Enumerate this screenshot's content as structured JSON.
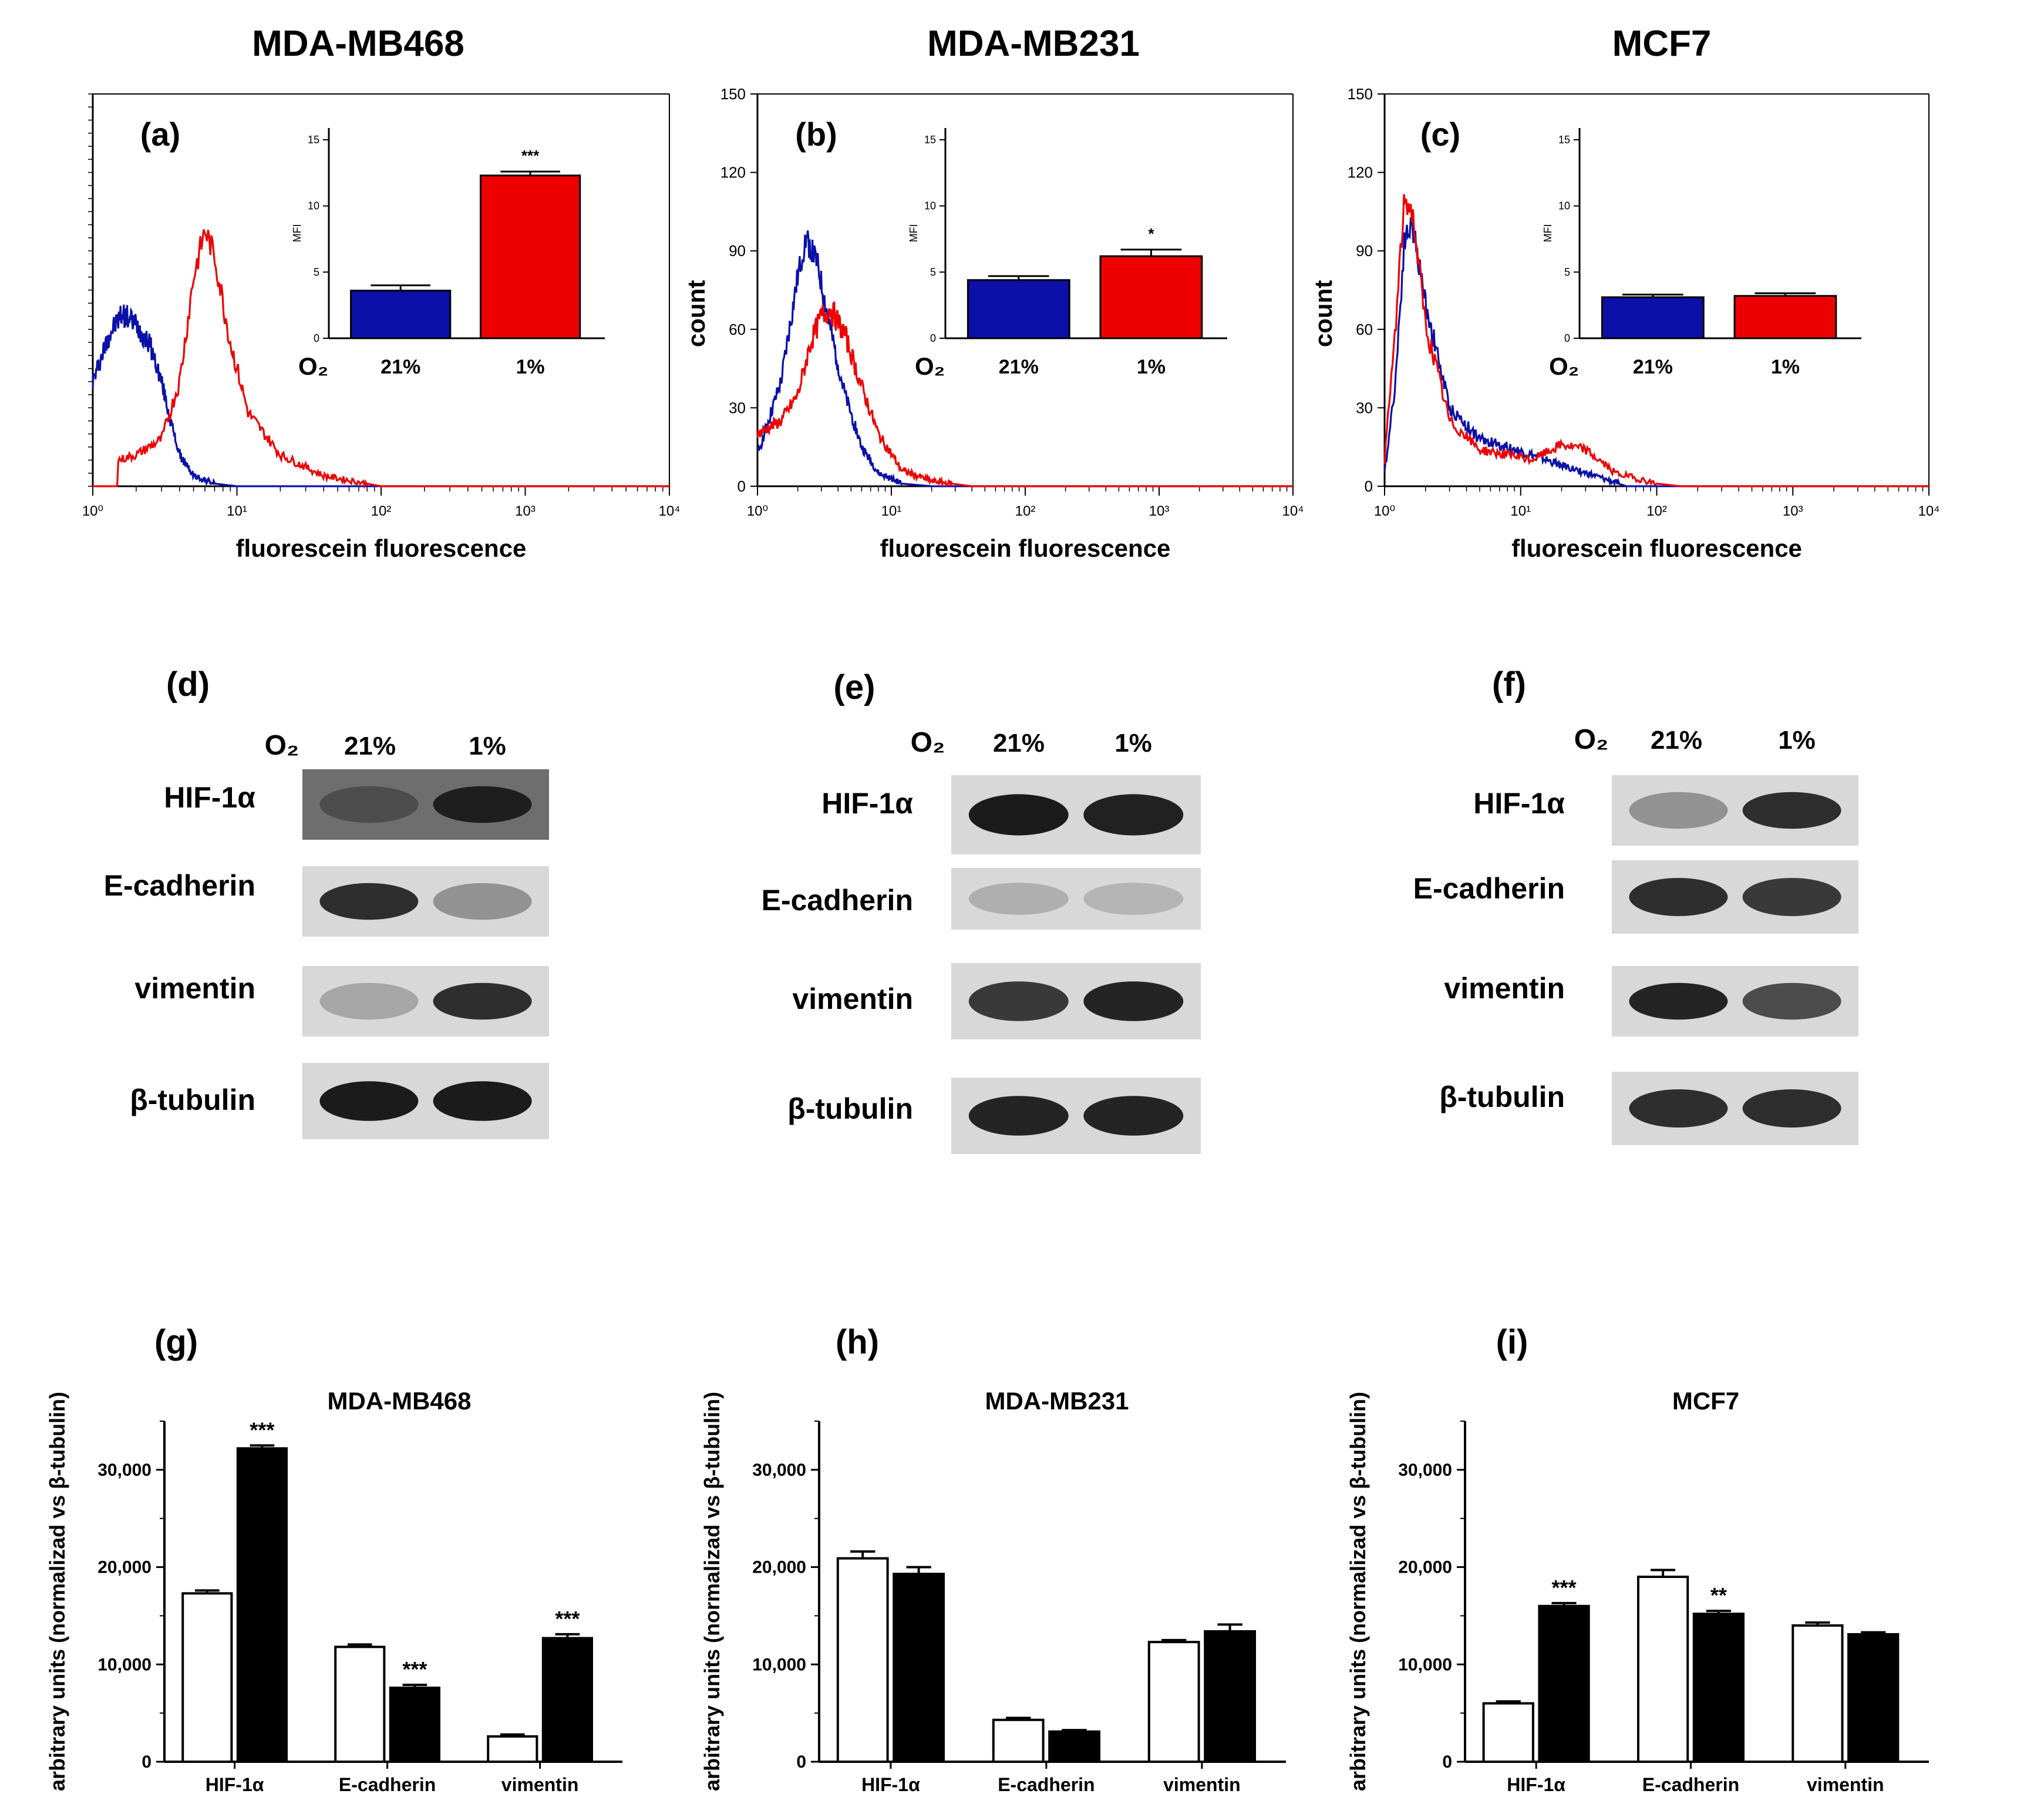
{
  "figure": {
    "flow_panels": [
      {
        "id": "a",
        "title": "MDA-MB468",
        "letter": "(a)",
        "ylabel": "",
        "xlabel": "fluorescein fluorescence",
        "yticks": [],
        "xticks": [
          "10⁰",
          "10¹",
          "10²",
          "10³",
          "10⁴"
        ],
        "inset": {
          "ylabel": "MFI",
          "yticks": [
            "0",
            "5",
            "10",
            "15"
          ],
          "o2": "O₂",
          "bars": [
            {
              "label": "21%",
              "value": 3.6,
              "err": 0.4,
              "color": "#0a10a8",
              "sig": ""
            },
            {
              "label": "1%",
              "value": 12.3,
              "err": 0.3,
              "color": "#ee0000",
              "sig": "***"
            }
          ]
        }
      },
      {
        "id": "b",
        "title": "MDA-MB231",
        "letter": "(b)",
        "ylabel": "count",
        "xlabel": "fluorescein fluorescence",
        "yticks": [
          "0",
          "30",
          "60",
          "90",
          "120",
          "150"
        ],
        "xticks": [
          "10⁰",
          "10¹",
          "10²",
          "10³",
          "10⁴"
        ],
        "inset": {
          "ylabel": "MFI",
          "yticks": [
            "0",
            "5",
            "10",
            "15"
          ],
          "o2": "O₂",
          "bars": [
            {
              "label": "21%",
              "value": 4.4,
              "err": 0.3,
              "color": "#0a10a8",
              "sig": ""
            },
            {
              "label": "1%",
              "value": 6.2,
              "err": 0.5,
              "color": "#ee0000",
              "sig": "*"
            }
          ]
        }
      },
      {
        "id": "c",
        "title": "MCF7",
        "letter": "(c)",
        "ylabel": "count",
        "xlabel": "fluorescein fluorescence",
        "yticks": [
          "0",
          "30",
          "60",
          "90",
          "120",
          "150"
        ],
        "xticks": [
          "10⁰",
          "10¹",
          "10²",
          "10³",
          "10⁴"
        ],
        "inset": {
          "ylabel": "MFI",
          "yticks": [
            "0",
            "5",
            "10",
            "15"
          ],
          "o2": "O₂",
          "bars": [
            {
              "label": "21%",
              "value": 3.1,
              "err": 0.2,
              "color": "#0a10a8",
              "sig": ""
            },
            {
              "label": "1%",
              "value": 3.2,
              "err": 0.2,
              "color": "#ee0000",
              "sig": ""
            }
          ]
        }
      }
    ],
    "blot_panels": [
      {
        "id": "d",
        "letter": "(d)",
        "o2": "O₂",
        "lanes": [
          "21%",
          "1%"
        ],
        "rows": [
          "HIF-1α",
          "E-cadherin",
          "vimentin",
          "β-tubulin"
        ]
      },
      {
        "id": "e",
        "letter": "(e)",
        "o2": "O₂",
        "lanes": [
          "21%",
          "1%"
        ],
        "rows": [
          "HIF-1α",
          "E-cadherin",
          "vimentin",
          "β-tubulin"
        ]
      },
      {
        "id": "f",
        "letter": "(f)",
        "o2": "O₂",
        "lanes": [
          "21%",
          "1%"
        ],
        "rows": [
          "HIF-1α",
          "E-cadherin",
          "vimentin",
          "β-tubulin"
        ]
      }
    ]
  },
  "chart_data": [
    {
      "type": "line",
      "panel": "a",
      "title": "MDA-MB468",
      "xlabel": "fluorescein fluorescence",
      "ylabel": "",
      "x_scale": "log",
      "xlim": [
        1,
        10000
      ],
      "ylim": [
        0,
        150
      ],
      "series": [
        {
          "name": "21% O2",
          "color": "#0a10a8",
          "points": [
            [
              1,
              40
            ],
            [
              1.3,
              58
            ],
            [
              1.6,
              66
            ],
            [
              2,
              62
            ],
            [
              2.5,
              54
            ],
            [
              3,
              40
            ],
            [
              3.5,
              24
            ],
            [
              4,
              12
            ],
            [
              5,
              4
            ],
            [
              7,
              1
            ],
            [
              10,
              0
            ]
          ]
        },
        {
          "name": "1% O2",
          "color": "#ee0000",
          "points": [
            [
              1.5,
              10
            ],
            [
              2,
              12
            ],
            [
              3,
              18
            ],
            [
              4,
              40
            ],
            [
              5,
              80
            ],
            [
              6,
              98
            ],
            [
              7,
              88
            ],
            [
              9,
              55
            ],
            [
              12,
              28
            ],
            [
              20,
              12
            ],
            [
              40,
              4
            ],
            [
              80,
              1
            ],
            [
              100,
              0
            ]
          ]
        }
      ]
    },
    {
      "type": "line",
      "panel": "b",
      "title": "MDA-MB231",
      "xlabel": "fluorescein fluorescence",
      "ylabel": "count",
      "x_scale": "log",
      "xlim": [
        1,
        10000
      ],
      "ylim": [
        0,
        150
      ],
      "series": [
        {
          "name": "21% O2",
          "color": "#0a10a8",
          "points": [
            [
              1,
              12
            ],
            [
              1.5,
              40
            ],
            [
              2,
              80
            ],
            [
              2.3,
              95
            ],
            [
              2.8,
              85
            ],
            [
              3.5,
              60
            ],
            [
              4.5,
              35
            ],
            [
              6,
              15
            ],
            [
              8,
              5
            ],
            [
              12,
              1
            ],
            [
              20,
              0
            ]
          ]
        },
        {
          "name": "1% O2",
          "color": "#ee0000",
          "points": [
            [
              1,
              20
            ],
            [
              1.5,
              25
            ],
            [
              2,
              35
            ],
            [
              2.5,
              55
            ],
            [
              3,
              65
            ],
            [
              3.5,
              68
            ],
            [
              4.5,
              58
            ],
            [
              6,
              38
            ],
            [
              8,
              20
            ],
            [
              12,
              6
            ],
            [
              20,
              2
            ],
            [
              40,
              0
            ]
          ]
        }
      ]
    },
    {
      "type": "line",
      "panel": "c",
      "title": "MCF7",
      "xlabel": "fluorescein fluorescence",
      "ylabel": "count",
      "x_scale": "log",
      "xlim": [
        1,
        10000
      ],
      "ylim": [
        0,
        150
      ],
      "series": [
        {
          "name": "21% O2",
          "color": "#0a10a8",
          "points": [
            [
              1,
              5
            ],
            [
              1.2,
              40
            ],
            [
              1.4,
              95
            ],
            [
              1.6,
              100
            ],
            [
              2,
              70
            ],
            [
              3,
              30
            ],
            [
              5,
              18
            ],
            [
              8,
              15
            ],
            [
              12,
              12
            ],
            [
              20,
              8
            ],
            [
              40,
              3
            ],
            [
              60,
              0
            ]
          ]
        },
        {
          "name": "1% O2",
          "color": "#ee0000",
          "points": [
            [
              1,
              10
            ],
            [
              1.2,
              60
            ],
            [
              1.4,
              110
            ],
            [
              1.6,
              105
            ],
            [
              2,
              62
            ],
            [
              3,
              25
            ],
            [
              5,
              14
            ],
            [
              8,
              12
            ],
            [
              12,
              10
            ],
            [
              20,
              16
            ],
            [
              30,
              14
            ],
            [
              50,
              5
            ],
            [
              100,
              1
            ],
            [
              150,
              0
            ]
          ]
        }
      ]
    },
    {
      "type": "bar",
      "panel": "g",
      "letter": "(g)",
      "title": "MDA-MB468",
      "ylabel": "arbitrary units (normalizad vs β-tubulin)",
      "ylim": [
        0,
        35000
      ],
      "yticks": [
        "0",
        "10,000",
        "20,000",
        "30,000"
      ],
      "categories": [
        "HIF-1α",
        "E-cadherin",
        "vimentin"
      ],
      "series": [
        {
          "name": "21% O2",
          "color": "#ffffff",
          "values": [
            17300,
            11800,
            2600
          ],
          "errors": [
            300,
            250,
            200
          ],
          "sig": [
            "",
            "",
            ""
          ]
        },
        {
          "name": "1% O2",
          "color": "#000000",
          "values": [
            32200,
            7600,
            12700
          ],
          "errors": [
            300,
            300,
            400
          ],
          "sig": [
            "***",
            "***",
            "***"
          ]
        }
      ]
    },
    {
      "type": "bar",
      "panel": "h",
      "letter": "(h)",
      "title": "MDA-MB231",
      "ylabel": "arbitrary units (normalizad vs β-tubulin)",
      "ylim": [
        0,
        35000
      ],
      "yticks": [
        "0",
        "10,000",
        "20,000",
        "30,000"
      ],
      "categories": [
        "HIF-1α",
        "E-cadherin",
        "vimentin"
      ],
      "series": [
        {
          "name": "21% O2",
          "color": "#ffffff",
          "values": [
            20900,
            4300,
            12300
          ],
          "errors": [
            700,
            200,
            200
          ],
          "sig": [
            "",
            "",
            ""
          ]
        },
        {
          "name": "1% O2",
          "color": "#000000",
          "values": [
            19300,
            3100,
            13400
          ],
          "errors": [
            700,
            150,
            700
          ],
          "sig": [
            "",
            "",
            ""
          ]
        }
      ]
    },
    {
      "type": "bar",
      "panel": "i",
      "letter": "(i)",
      "title": "MCF7",
      "ylabel": "arbitrary units (normalizad vs β-tubulin)",
      "ylim": [
        0,
        35000
      ],
      "yticks": [
        "0",
        "10,000",
        "20,000",
        "30,000"
      ],
      "categories": [
        "HIF-1α",
        "E-cadherin",
        "vimentin"
      ],
      "series": [
        {
          "name": "21% O2",
          "color": "#ffffff",
          "values": [
            6000,
            19000,
            14000
          ],
          "errors": [
            200,
            700,
            300
          ],
          "sig": [
            "",
            "",
            ""
          ]
        },
        {
          "name": "1% O2",
          "color": "#000000",
          "values": [
            16000,
            15200,
            13100
          ],
          "errors": [
            300,
            300,
            200
          ],
          "sig": [
            "***",
            "**",
            ""
          ]
        }
      ]
    }
  ]
}
